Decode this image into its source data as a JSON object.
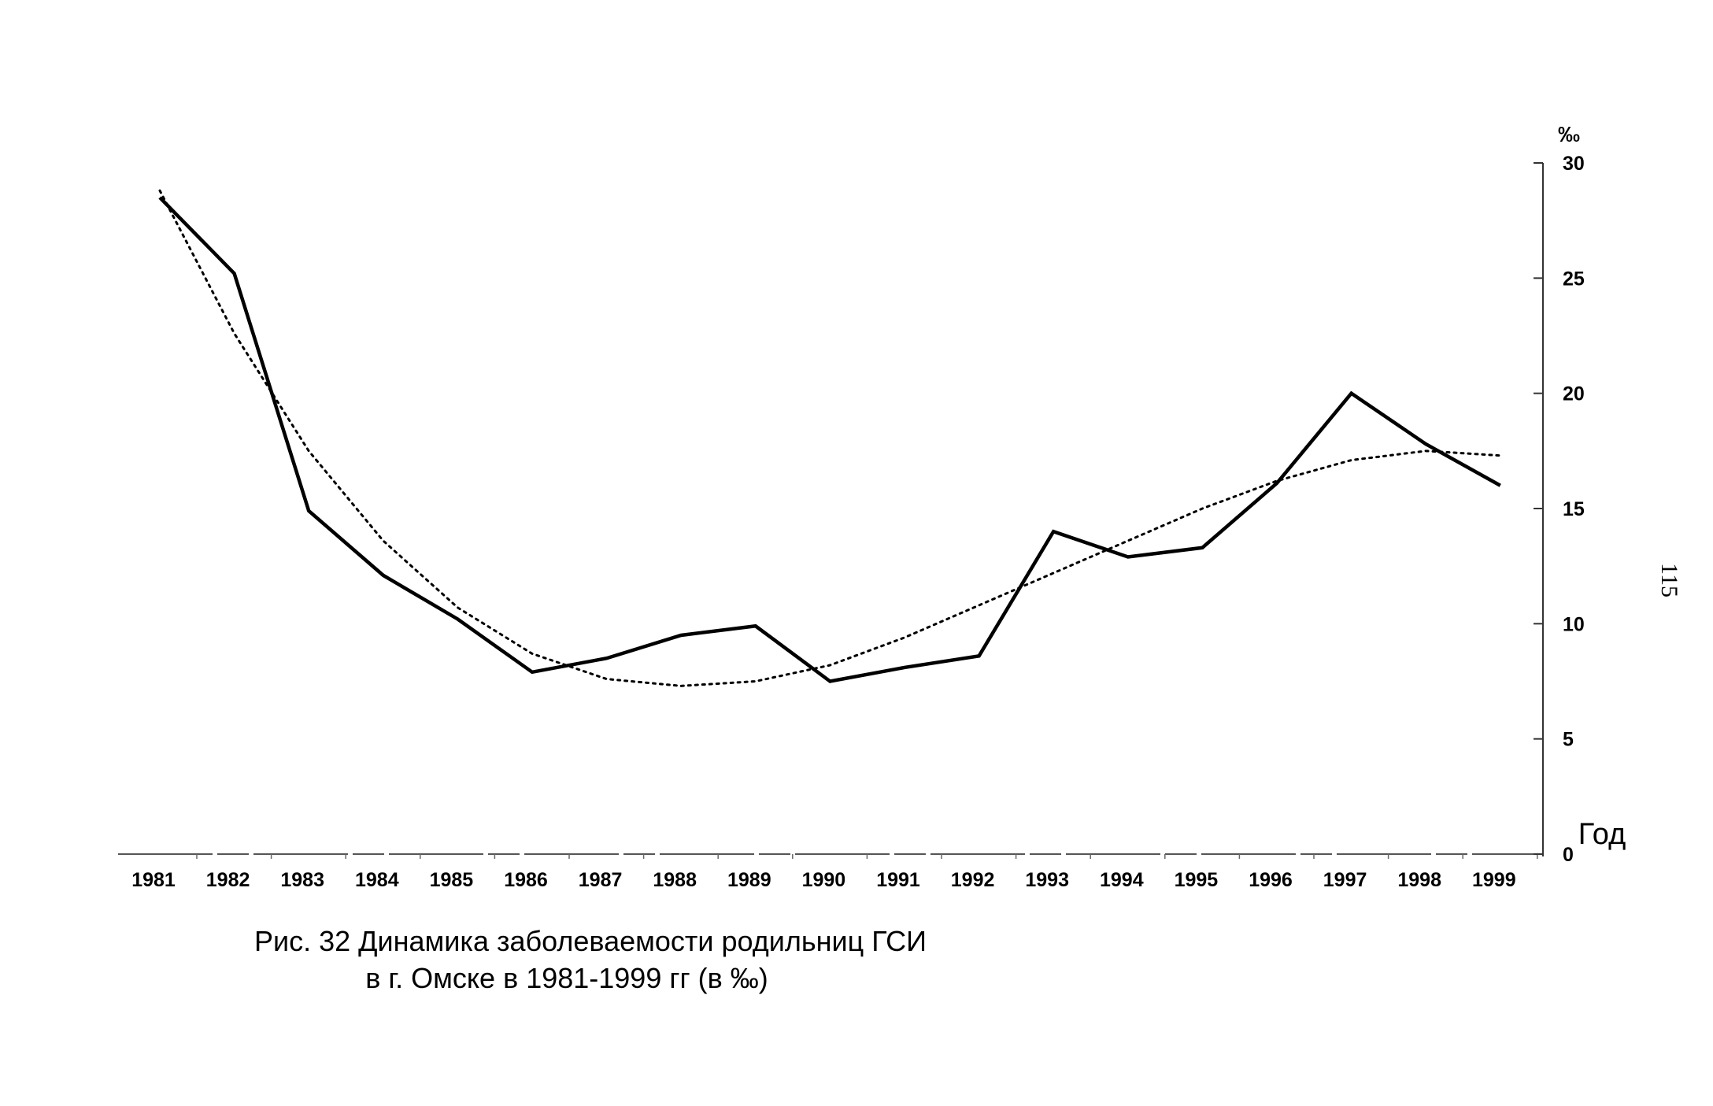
{
  "chart_data": {
    "type": "line",
    "x": [
      1981,
      1982,
      1983,
      1984,
      1985,
      1986,
      1987,
      1988,
      1989,
      1990,
      1991,
      1992,
      1993,
      1994,
      1995,
      1996,
      1997,
      1998,
      1999
    ],
    "series": [
      {
        "style": "solid",
        "color": "#000000",
        "values": [
          28.5,
          25.2,
          14.9,
          12.1,
          10.2,
          7.9,
          8.5,
          9.5,
          9.9,
          7.5,
          8.1,
          8.6,
          14.0,
          12.9,
          13.3,
          16.1,
          20.0,
          17.8,
          16.0
        ]
      },
      {
        "style": "dotted",
        "color": "#000000",
        "values": [
          28.8,
          22.6,
          17.5,
          13.6,
          10.7,
          8.7,
          7.6,
          7.3,
          7.5,
          8.2,
          9.4,
          10.8,
          12.2,
          13.6,
          15.0,
          16.2,
          17.1,
          17.5,
          17.3
        ]
      }
    ],
    "xlabel": "Год",
    "ylabel": "‰",
    "ylim": [
      0,
      30
    ],
    "yticks": [
      0,
      5,
      10,
      15,
      20,
      25,
      30
    ],
    "y_axis_side": "right",
    "grid": false,
    "legend": "none"
  },
  "caption": {
    "line1": "Рис. 32  Динамика заболеваемости родильниц ГСИ",
    "line2": "в г. Омске в 1981-1999 гг  (в ‰)"
  },
  "page_number": "115"
}
